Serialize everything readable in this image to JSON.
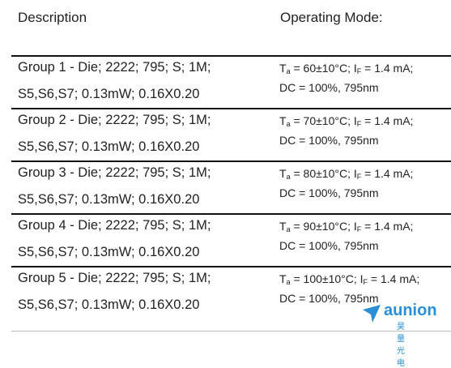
{
  "header": {
    "description": "Description",
    "mode": "Operating Mode:"
  },
  "rows": [
    {
      "description": [
        "Group 1 - Die; 2222; 795; S; 1M;",
        "S5,S6,S7; 0.13mW; 0.16X0.20"
      ],
      "mode": {
        "t_symbol": "T",
        "t_sub": "a",
        "t_text": " = 60±10°C; ",
        "i_symbol": "I",
        "i_sub": "F",
        "i_text": " = 1.4 mA;",
        "duty": "DC = 100%, 795nm"
      }
    },
    {
      "description": [
        "Group 2 - Die; 2222; 795; S; 1M;",
        "S5,S6,S7; 0.13mW; 0.16X0.20"
      ],
      "mode": {
        "t_symbol": "T",
        "t_sub": "a",
        "t_text": " = 70±10°C; ",
        "i_symbol": "I",
        "i_sub": "F",
        "i_text": " = 1.4 mA;",
        "duty": "DC = 100%, 795nm"
      }
    },
    {
      "description": [
        "Group 3 - Die; 2222; 795; S; 1M;",
        "S5,S6,S7; 0.13mW; 0.16X0.20"
      ],
      "mode": {
        "t_symbol": "T",
        "t_sub": "a",
        "t_text": " = 80±10°C; ",
        "i_symbol": "I",
        "i_sub": "F",
        "i_text": " = 1.4 mA;",
        "duty": "DC = 100%, 795nm"
      }
    },
    {
      "description": [
        "Group 4 - Die; 2222; 795; S; 1M;",
        "S5,S6,S7; 0.13mW; 0.16X0.20"
      ],
      "mode": {
        "t_symbol": "T",
        "t_sub": "a",
        "t_text": " = 90±10°C; ",
        "i_symbol": "I",
        "i_sub": "F",
        "i_text": " = 1.4 mA;",
        "duty": "DC = 100%, 795nm"
      }
    },
    {
      "description": [
        "Group 5 - Die; 2222; 795; S; 1M;",
        "S5,S6,S7; 0.13mW; 0.16X0.20"
      ],
      "mode": {
        "t_symbol": "T",
        "t_sub": "a",
        "t_text": " = 100±10°C; ",
        "i_symbol": "I",
        "i_sub": "F",
        "i_text": " = 1.4 mA;",
        "duty": "DC = 100%, 795nm"
      }
    }
  ],
  "watermark": {
    "brand": "aunion",
    "chinese": "昊量光电"
  }
}
